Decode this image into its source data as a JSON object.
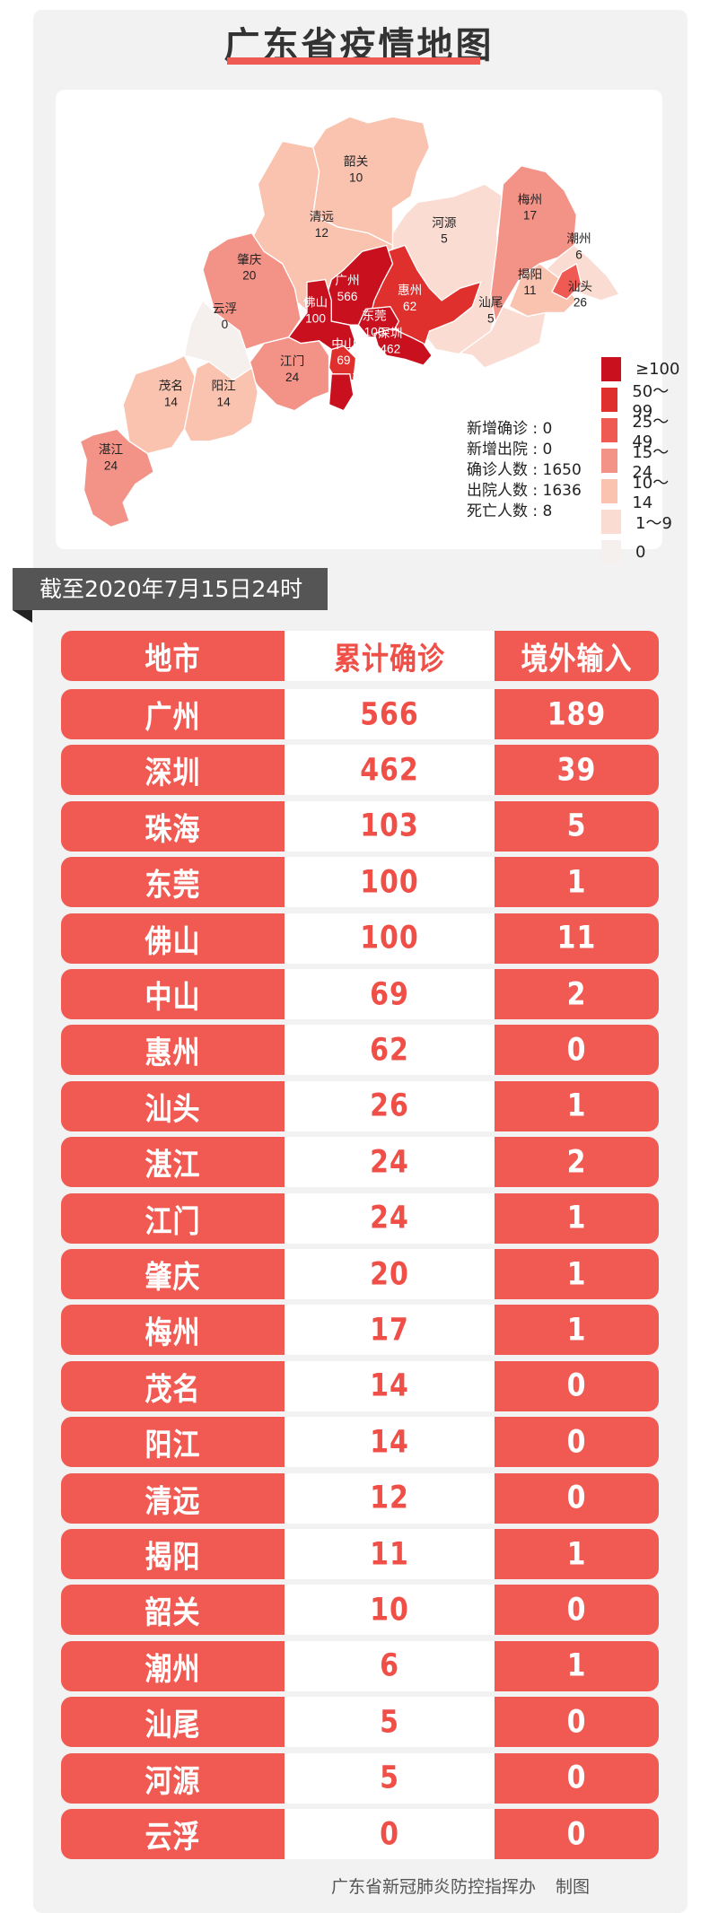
{
  "title": "广东省疫情地图",
  "map": {
    "regions": [
      {
        "name": "韶关",
        "value": "10",
        "level": 4
      },
      {
        "name": "清远",
        "value": "12",
        "level": 4
      },
      {
        "name": "河源",
        "value": "5",
        "level": 5
      },
      {
        "name": "梅州",
        "value": "17",
        "level": 3
      },
      {
        "name": "潮州",
        "value": "6",
        "level": 5
      },
      {
        "name": "揭阳",
        "value": "11",
        "level": 4
      },
      {
        "name": "汕头",
        "value": "26",
        "level": 2
      },
      {
        "name": "汕尾",
        "value": "5",
        "level": 5
      },
      {
        "name": "惠州",
        "value": "62",
        "level": 1
      },
      {
        "name": "广州",
        "value": "566",
        "level": 0
      },
      {
        "name": "东莞",
        "value": "100",
        "level": 0
      },
      {
        "name": "深圳",
        "value": "462",
        "level": 0
      },
      {
        "name": "佛山",
        "value": "100",
        "level": 0
      },
      {
        "name": "中山",
        "value": "69",
        "level": 1
      },
      {
        "name": "珠海",
        "value": "103",
        "level": 0
      },
      {
        "name": "江门",
        "value": "24",
        "level": 3
      },
      {
        "name": "肇庆",
        "value": "20",
        "level": 3
      },
      {
        "name": "云浮",
        "value": "0",
        "level": 6
      },
      {
        "name": "茂名",
        "value": "14",
        "level": 4
      },
      {
        "name": "阳江",
        "value": "14",
        "level": 4
      },
      {
        "name": "湛江",
        "value": "24",
        "level": 3
      }
    ],
    "stats": [
      {
        "label": "新增确诊",
        "value": "0"
      },
      {
        "label": "新增出院",
        "value": "0"
      },
      {
        "label": "确诊人数",
        "value": "1650"
      },
      {
        "label": "出院人数",
        "value": "1636"
      },
      {
        "label": "死亡人数",
        "value": "8"
      }
    ],
    "legend": [
      {
        "label": "≥100",
        "color": "#c8101e"
      },
      {
        "label": "50～99",
        "color": "#e0302d"
      },
      {
        "label": "25～49",
        "color": "#ef5a52"
      },
      {
        "label": "15～24",
        "color": "#f39287"
      },
      {
        "label": "10～14",
        "color": "#f9c3b0"
      },
      {
        "label": "1～9",
        "color": "#fbdcd3"
      },
      {
        "label": "0",
        "color": "#f5efed"
      }
    ]
  },
  "date_banner": "截至2020年7月15日24时",
  "table": {
    "headers": [
      "地市",
      "累计确诊",
      "境外输入"
    ],
    "rows": [
      [
        "广州",
        "566",
        "189"
      ],
      [
        "深圳",
        "462",
        "39"
      ],
      [
        "珠海",
        "103",
        "5"
      ],
      [
        "东莞",
        "100",
        "1"
      ],
      [
        "佛山",
        "100",
        "11"
      ],
      [
        "中山",
        "69",
        "2"
      ],
      [
        "惠州",
        "62",
        "0"
      ],
      [
        "汕头",
        "26",
        "1"
      ],
      [
        "湛江",
        "24",
        "2"
      ],
      [
        "江门",
        "24",
        "1"
      ],
      [
        "肇庆",
        "20",
        "1"
      ],
      [
        "梅州",
        "17",
        "1"
      ],
      [
        "茂名",
        "14",
        "0"
      ],
      [
        "阳江",
        "14",
        "0"
      ],
      [
        "清远",
        "12",
        "0"
      ],
      [
        "揭阳",
        "11",
        "1"
      ],
      [
        "韶关",
        "10",
        "0"
      ],
      [
        "潮州",
        "6",
        "1"
      ],
      [
        "汕尾",
        "5",
        "0"
      ],
      [
        "河源",
        "5",
        "0"
      ],
      [
        "云浮",
        "0",
        "0"
      ]
    ]
  },
  "footer": {
    "org": "广东省新冠肺炎防控指挥办",
    "suffix": "制图"
  }
}
